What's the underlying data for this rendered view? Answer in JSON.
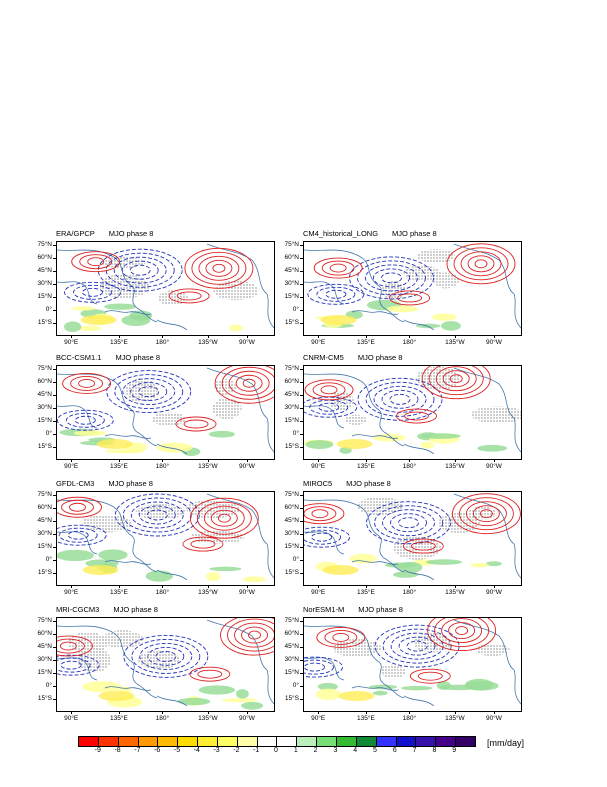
{
  "panels": [
    {
      "model": "ERA/GPCP",
      "phase": "MJO phase 8"
    },
    {
      "model": "CM4_historical_LONG",
      "phase": "MJO phase 8"
    },
    {
      "model": "BCC-CSM1.1",
      "phase": "MJO phase 8"
    },
    {
      "model": "CNRM-CM5",
      "phase": "MJO phase 8"
    },
    {
      "model": "GFDL-CM3",
      "phase": "MJO phase 8"
    },
    {
      "model": "MIROC5",
      "phase": "MJO phase 8"
    },
    {
      "model": "MRI-CGCM3",
      "phase": "MJO phase 8"
    },
    {
      "model": "NorESM1-M",
      "phase": "MJO phase 8"
    }
  ],
  "lat_labels": [
    "75°N",
    "60°N",
    "45°N",
    "30°N",
    "15°N",
    "0°",
    "15°S"
  ],
  "lon_labels": [
    "90°E",
    "135°E",
    "180°",
    "135°W",
    "90°W"
  ],
  "colorbar": {
    "unit": "[mm/day]",
    "labels": [
      "-9",
      "-8",
      "-7",
      "-6",
      "-5",
      "-4",
      "-3",
      "-2",
      "-1",
      "0",
      "1",
      "2",
      "3",
      "4",
      "5",
      "6",
      "7",
      "8",
      "9"
    ],
    "colors": [
      "#ff0000",
      "#ff3300",
      "#ff6600",
      "#ff9900",
      "#ffbb00",
      "#ffdd00",
      "#ffee33",
      "#ffff66",
      "#ffffaa",
      "#ffffff",
      "#ffffff",
      "#bbeebb",
      "#77dd77",
      "#33bb33",
      "#118833",
      "#3333ff",
      "#1111cc",
      "#3311aa",
      "#440088",
      "#330066"
    ]
  },
  "contour_colors": {
    "positive": "#dd2222",
    "negative": "#2233bb",
    "coast": "#4477aa",
    "hatch": "#555555"
  }
}
